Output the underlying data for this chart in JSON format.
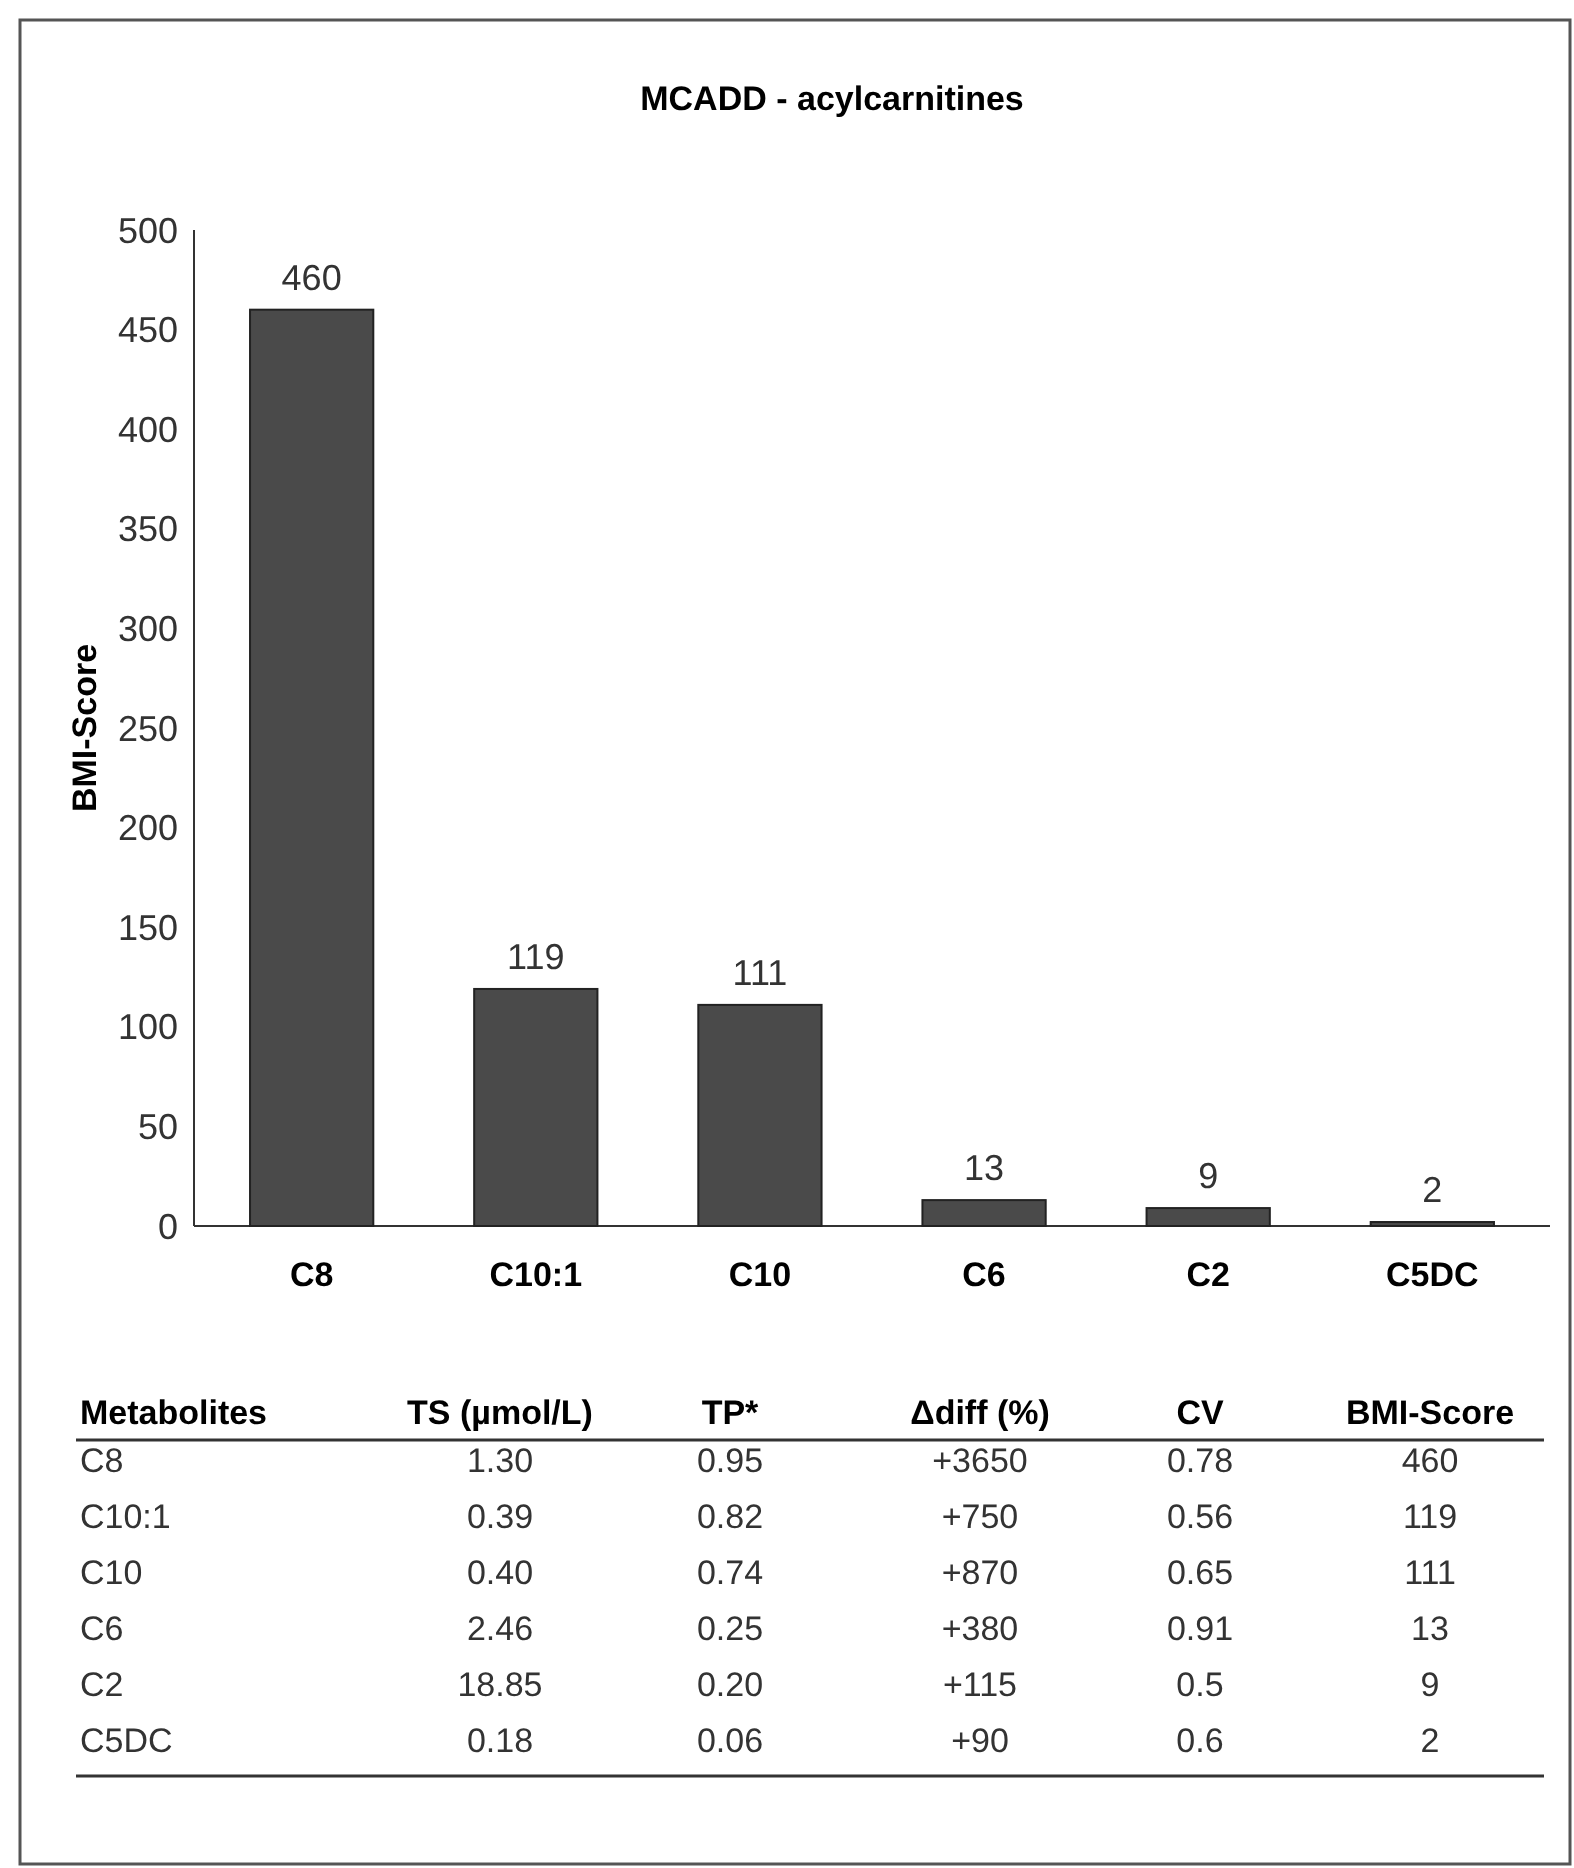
{
  "chart_data": [
    {
      "type": "bar",
      "title": "MCADD - acylcarnitines",
      "ylabel": "BMI-Score",
      "categories": [
        "C8",
        "C10:1",
        "C10",
        "C6",
        "C2",
        "C5DC"
      ],
      "values": [
        460,
        119,
        111,
        13,
        9,
        2
      ],
      "color": "#4a4a4a",
      "ylim": [
        0,
        500
      ],
      "yticks": [
        0,
        50,
        100,
        150,
        200,
        250,
        300,
        350,
        400,
        450,
        500
      ],
      "data_labels": true
    },
    {
      "type": "other",
      "categories": [
        "Metabolites",
        "TS (µmol/L)",
        "TP*",
        "Δdiff (%)",
        "CV",
        "BMI-Score"
      ],
      "cell_labels": [
        [
          "C8",
          "1.30",
          "0.95",
          "+3650",
          "0.78",
          "460"
        ],
        [
          "C10:1",
          "0.39",
          "0.82",
          "+750",
          "0.56",
          "119"
        ],
        [
          "C10",
          "0.40",
          "0.74",
          "+870",
          "0.65",
          "111"
        ],
        [
          "C6",
          "2.46",
          "0.25",
          "+380",
          "0.91",
          "13"
        ],
        [
          "C2",
          "18.85",
          "0.20",
          "+115",
          "0.5",
          "9"
        ],
        [
          "C5DC",
          "0.18",
          "0.06",
          "+90",
          "0.6",
          "2"
        ]
      ]
    }
  ]
}
